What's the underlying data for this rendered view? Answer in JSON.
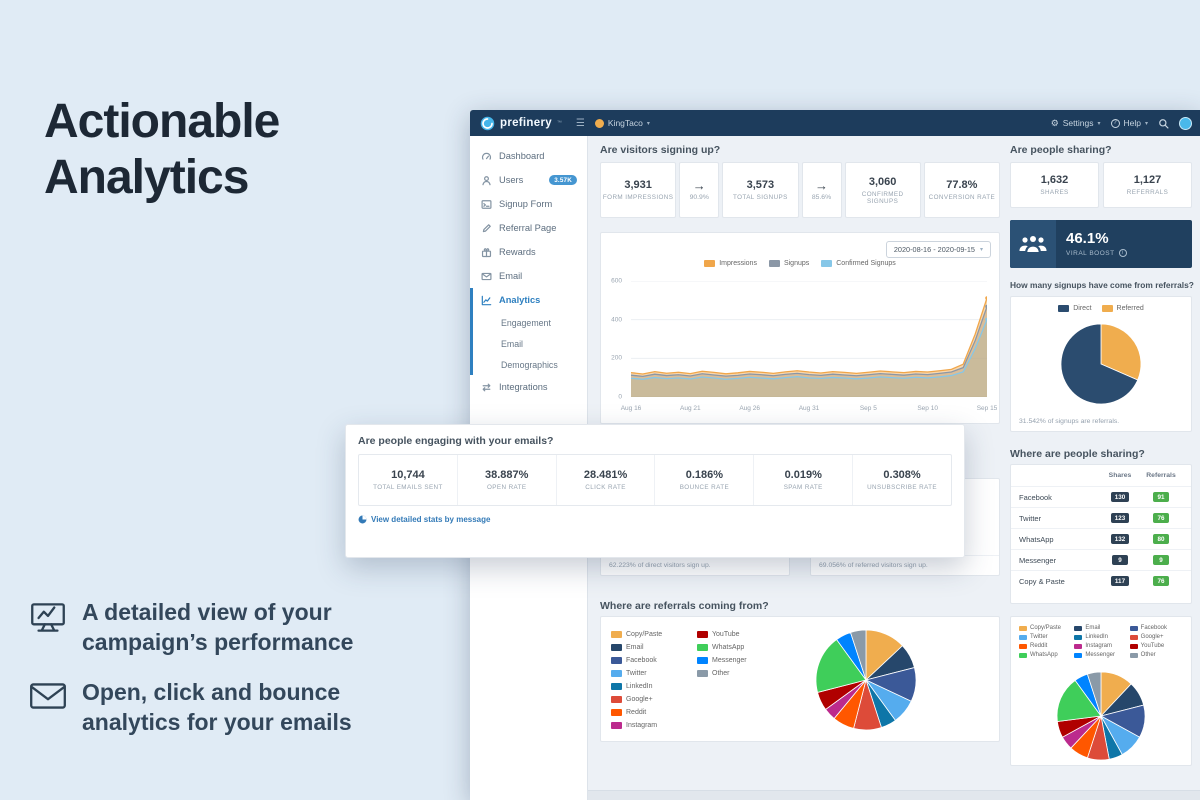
{
  "icons": {
    "menu": "☰",
    "gear": "⚙",
    "caret": "▾",
    "arrow": "→",
    "help": "?",
    "info": "i",
    "tm": "™"
  },
  "hero": {
    "title": [
      "Actionable",
      "Analytics"
    ],
    "bullets": [
      {
        "icon": "campaign-analytics-icon",
        "lines": [
          "A detailed view of your",
          "campaign’s performance"
        ]
      },
      {
        "icon": "email-envelope-icon",
        "lines": [
          "Open, click and bounce",
          "analytics for your emails"
        ]
      }
    ]
  },
  "email_card": {
    "title": "Are people engaging with your emails?",
    "stats": [
      {
        "value": "10,744",
        "label": "TOTAL EMAILS SENT"
      },
      {
        "value": "38.887%",
        "label": "OPEN RATE"
      },
      {
        "value": "28.481%",
        "label": "CLICK RATE"
      },
      {
        "value": "0.186%",
        "label": "BOUNCE RATE"
      },
      {
        "value": "0.019%",
        "label": "SPAM RATE"
      },
      {
        "value": "0.308%",
        "label": "UNSUBSCRIBE RATE"
      }
    ],
    "link": "View detailed stats by message"
  },
  "app": {
    "navbar": {
      "brand": "prefinery",
      "workspace": "KingTaco",
      "settings_label": "Settings",
      "help_label": "Help"
    },
    "sidebar": {
      "items": [
        {
          "label": "Dashboard",
          "icon": "gauge-icon"
        },
        {
          "label": "Users",
          "icon": "user-icon",
          "badge": "3.57K"
        },
        {
          "label": "Signup Form",
          "icon": "terminal-icon"
        },
        {
          "label": "Referral Page",
          "icon": "pencil-icon"
        },
        {
          "label": "Rewards",
          "icon": "gift-icon"
        },
        {
          "label": "Email",
          "icon": "envelope-icon"
        },
        {
          "label": "Analytics",
          "icon": "line-chart-icon",
          "active": true,
          "children": [
            {
              "label": "Engagement"
            },
            {
              "label": "Email"
            },
            {
              "label": "Demographics"
            }
          ]
        },
        {
          "label": "Integrations",
          "icon": "integrations-icon"
        }
      ]
    },
    "signups_section": {
      "title": "Are visitors signing up?",
      "funnel": [
        {
          "type": "stat",
          "value": "3,931",
          "label": "FORM IMPRESSIONS"
        },
        {
          "type": "arrow",
          "pct": "90.9%"
        },
        {
          "type": "stat",
          "value": "3,573",
          "label": "TOTAL SIGNUPS"
        },
        {
          "type": "arrow",
          "pct": "85.6%"
        },
        {
          "type": "stat",
          "value": "3,060",
          "label": "CONFIRMED SIGNUPS"
        },
        {
          "type": "stat",
          "value": "77.8%",
          "label": "CONVERSION RATE"
        }
      ],
      "chart": {
        "date_range": "2020-08-16 - 2020-09-15",
        "chart_data": {
          "type": "line",
          "x_ticks": [
            "Aug 16",
            "Aug 21",
            "Aug 26",
            "Aug 31",
            "Sep 5",
            "Sep 10",
            "Sep 15"
          ],
          "y_ticks": [
            0,
            200,
            400,
            600
          ],
          "ylim": [
            0,
            600
          ],
          "series": [
            {
              "name": "Impressions",
              "color": "#f0a64a",
              "values": [
                126,
                119,
                131,
                123,
                128,
                121,
                133,
                127,
                120,
                125,
                132,
                128,
                122,
                130,
                136,
                129,
                124,
                131,
                127,
                122,
                128,
                134,
                130,
                126,
                132,
                129,
                136,
                143,
                170,
                325,
                512
              ]
            },
            {
              "name": "Signups",
              "color": "#8b97a6",
              "values": [
                113,
                107,
                118,
                111,
                115,
                109,
                120,
                114,
                108,
                112,
                119,
                115,
                110,
                117,
                122,
                116,
                112,
                118,
                114,
                110,
                115,
                121,
                117,
                113,
                119,
                116,
                122,
                129,
                152,
                292,
                468
              ]
            },
            {
              "name": "Confirmed Signups",
              "color": "#86c7e8",
              "values": [
                97,
                92,
                101,
                95,
                99,
                93,
                103,
                98,
                92,
                96,
                102,
                98,
                94,
                100,
                105,
                99,
                96,
                101,
                98,
                94,
                98,
                104,
                100,
                97,
                102,
                99,
                104,
                111,
                130,
                250,
                401
              ]
            }
          ]
        }
      }
    },
    "visitor_cards": [
      {
        "caption": "62.223% of direct visitors sign up."
      },
      {
        "caption": "69.056% of referred visitors sign up."
      }
    ],
    "referral_sources_section": {
      "title": "Where are referrals coming from?",
      "chart_data": {
        "type": "pie",
        "slices": [
          {
            "label": "Copy/Paste",
            "value": 13,
            "color": "#f0ad4e"
          },
          {
            "label": "Email",
            "value": 8,
            "color": "#26476b"
          },
          {
            "label": "Facebook",
            "value": 11,
            "color": "#3b5998"
          },
          {
            "label": "Twitter",
            "value": 8,
            "color": "#55acee"
          },
          {
            "label": "LinkedIn",
            "value": 5,
            "color": "#0e76a8"
          },
          {
            "label": "Google+",
            "value": 9,
            "color": "#dd4b39"
          },
          {
            "label": "Reddit",
            "value": 7,
            "color": "#ff5700"
          },
          {
            "label": "Instagram",
            "value": 4,
            "color": "#bc2a8d"
          },
          {
            "label": "YouTube",
            "value": 6,
            "color": "#b00000"
          },
          {
            "label": "WhatsApp",
            "value": 19,
            "color": "#3fce5a"
          },
          {
            "label": "Messenger",
            "value": 5,
            "color": "#0084ff"
          },
          {
            "label": "Other",
            "value": 5,
            "color": "#8a9aa8"
          }
        ]
      }
    },
    "sharing_section": {
      "title": "Are people sharing?",
      "stats": [
        {
          "value": "1,632",
          "label": "SHARES"
        },
        {
          "value": "1,127",
          "label": "REFERRALS"
        }
      ]
    },
    "viral_boost": {
      "value": "46.1%",
      "label": "VIRAL BOOST"
    },
    "referral_signups_section": {
      "title": "How many signups have come from referrals?",
      "caption": "31.542% of signups are referrals.",
      "legend_order": [
        "Direct",
        "Referred"
      ],
      "chart_data": {
        "type": "pie",
        "slices": [
          {
            "label": "Referred",
            "value": 31.542,
            "color": "#f0ad4e"
          },
          {
            "label": "Direct",
            "value": 68.458,
            "color": "#2b4c6f"
          }
        ]
      }
    },
    "sharing_table_section": {
      "title": "Where are people sharing?",
      "columns": [
        "Shares",
        "Referrals"
      ],
      "badge_colors": {
        "shares": "#2e4154",
        "referrals": "#4cae4c"
      },
      "rows": [
        {
          "channel": "Facebook",
          "shares": "130",
          "referrals": "91"
        },
        {
          "channel": "Twitter",
          "shares": "123",
          "referrals": "76"
        },
        {
          "channel": "WhatsApp",
          "shares": "132",
          "referrals": "80"
        },
        {
          "channel": "Messenger",
          "shares": "9",
          "referrals": "9"
        },
        {
          "channel": "Copy & Paste",
          "shares": "117",
          "referrals": "76"
        }
      ]
    },
    "shares_breakdown_section": {
      "chart_data": {
        "type": "pie",
        "slices": [
          {
            "label": "Copy/Paste",
            "value": 12,
            "color": "#f0ad4e"
          },
          {
            "label": "Email",
            "value": 9,
            "color": "#26476b"
          },
          {
            "label": "Facebook",
            "value": 12,
            "color": "#3b5998"
          },
          {
            "label": "Twitter",
            "value": 9,
            "color": "#55acee"
          },
          {
            "label": "LinkedIn",
            "value": 5,
            "color": "#0e76a8"
          },
          {
            "label": "Google+",
            "value": 8,
            "color": "#dd4b39"
          },
          {
            "label": "Reddit",
            "value": 7,
            "color": "#ff5700"
          },
          {
            "label": "Instagram",
            "value": 5,
            "color": "#bc2a8d"
          },
          {
            "label": "YouTube",
            "value": 6,
            "color": "#b00000"
          },
          {
            "label": "WhatsApp",
            "value": 17,
            "color": "#3fce5a"
          },
          {
            "label": "Messenger",
            "value": 5,
            "color": "#0084ff"
          },
          {
            "label": "Other",
            "value": 5,
            "color": "#8a9aa8"
          }
        ]
      }
    }
  }
}
